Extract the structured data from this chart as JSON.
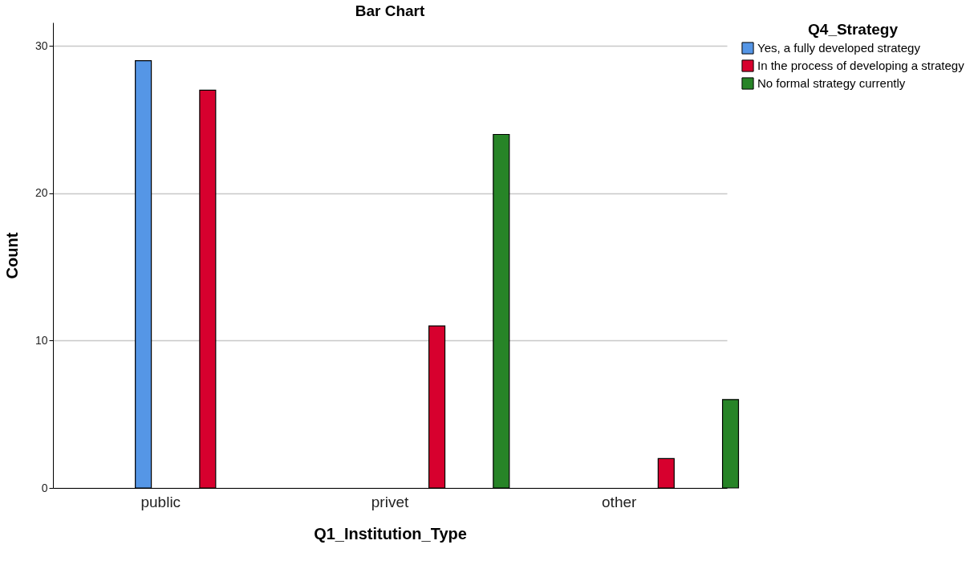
{
  "chart_data": {
    "type": "bar",
    "title": "Bar Chart",
    "xlabel": "Q1_Institution_Type",
    "ylabel": "Count",
    "legend_title": "Q4_Strategy",
    "categories": [
      "public",
      "privet",
      "other"
    ],
    "series": [
      {
        "name": "Yes, a fully developed strategy",
        "color": "#5596e6",
        "values": [
          29,
          null,
          null
        ]
      },
      {
        "name": "In the process of developing a strategy",
        "color": "#d7002e",
        "values": [
          27,
          11,
          2
        ]
      },
      {
        "name": "No formal strategy currently",
        "color": "#278427",
        "values": [
          null,
          24,
          6
        ]
      }
    ],
    "ylim": [
      0,
      31.6
    ],
    "yticks": [
      0,
      10,
      20,
      30
    ],
    "grid": "y",
    "legend": "top right"
  }
}
